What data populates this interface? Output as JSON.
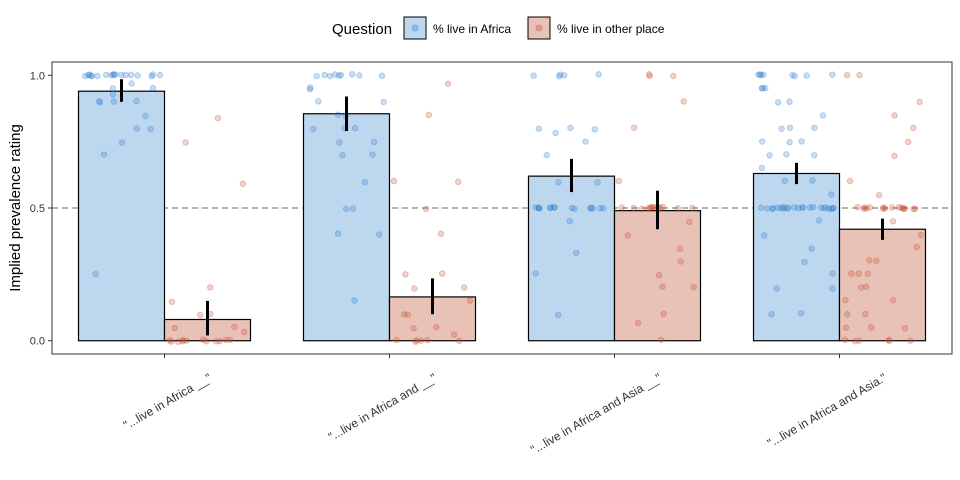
{
  "chart_data": {
    "type": "bar",
    "title": "",
    "xlabel": "",
    "ylabel": "Implied prevalence rating",
    "ylim": [
      -0.05,
      1.05
    ],
    "yticks": [
      "0.0",
      "0.5",
      "1.0"
    ],
    "reference_line": 0.5,
    "legend": {
      "title": "Question",
      "position": "top"
    },
    "categories": [
      "\"...live in Africa __\"",
      "\"...live in Africa and __\"",
      "\"...live in Africa and Asia __\"",
      "\"...live in Africa and Asia.\""
    ],
    "series": [
      {
        "name": "% live in Africa",
        "color": "#bdd7ee",
        "point_color": "#2b7bd0",
        "values": [
          0.94,
          0.855,
          0.62,
          0.63
        ],
        "ci_low": [
          0.9,
          0.79,
          0.56,
          0.59
        ],
        "ci_high": [
          0.985,
          0.92,
          0.685,
          0.67
        ],
        "points": [
          [
            1.0,
            1.0,
            1.0,
            1.0,
            1.0,
            1.0,
            1.0,
            1.0,
            1.0,
            1.0,
            1.0,
            1.0,
            1.0,
            1.0,
            1.0,
            1.0,
            1.0,
            1.0,
            0.97,
            0.95,
            0.95,
            0.93,
            0.9,
            0.9,
            0.9,
            0.9,
            0.85,
            0.8,
            0.8,
            0.75,
            0.7,
            0.25
          ],
          [
            1.0,
            1.0,
            1.0,
            1.0,
            1.0,
            1.0,
            1.0,
            1.0,
            1.0,
            0.95,
            0.95,
            0.9,
            0.9,
            0.85,
            0.85,
            0.8,
            0.8,
            0.8,
            0.75,
            0.75,
            0.7,
            0.7,
            0.6,
            0.5,
            0.5,
            0.4,
            0.4,
            0.15
          ],
          [
            1.0,
            1.0,
            1.0,
            1.0,
            1.0,
            0.8,
            0.8,
            0.8,
            0.78,
            0.75,
            0.7,
            0.6,
            0.6,
            0.5,
            0.5,
            0.5,
            0.5,
            0.5,
            0.5,
            0.5,
            0.5,
            0.5,
            0.5,
            0.5,
            0.5,
            0.5,
            0.5,
            0.5,
            0.45,
            0.33,
            0.25,
            0.1
          ],
          [
            1.0,
            1.0,
            1.0,
            1.0,
            1.0,
            1.0,
            1.0,
            1.0,
            0.95,
            0.95,
            0.95,
            0.9,
            0.9,
            0.85,
            0.8,
            0.8,
            0.8,
            0.75,
            0.75,
            0.75,
            0.7,
            0.7,
            0.7,
            0.65,
            0.6,
            0.6,
            0.55,
            0.5,
            0.5,
            0.5,
            0.5,
            0.5,
            0.5,
            0.5,
            0.5,
            0.5,
            0.5,
            0.5,
            0.5,
            0.5,
            0.5,
            0.5,
            0.5,
            0.5,
            0.5,
            0.5,
            0.5,
            0.5,
            0.5,
            0.5,
            0.45,
            0.4,
            0.35,
            0.3,
            0.25,
            0.2,
            0.2,
            0.1,
            0.1
          ]
        ]
      },
      {
        "name": "% live in other place",
        "color": "#e8c1b7",
        "point_color": "#c94a2c",
        "values": [
          0.08,
          0.165,
          0.49,
          0.42
        ],
        "ci_low": [
          0.02,
          0.1,
          0.42,
          0.38
        ],
        "ci_high": [
          0.15,
          0.235,
          0.565,
          0.46
        ],
        "points": [
          [
            0.84,
            0.75,
            0.59,
            0.2,
            0.15,
            0.1,
            0.1,
            0.05,
            0.05,
            0.03,
            0.0,
            0.0,
            0.0,
            0.0,
            0.0,
            0.0,
            0.0,
            0.0,
            0.0,
            0.0,
            0.0,
            0.0
          ],
          [
            0.97,
            0.85,
            0.6,
            0.6,
            0.5,
            0.4,
            0.25,
            0.25,
            0.2,
            0.2,
            0.15,
            0.1,
            0.1,
            0.05,
            0.05,
            0.02,
            0.0,
            0.0,
            0.0,
            0.0,
            0.0,
            0.0
          ],
          [
            1.0,
            1.0,
            1.0,
            0.9,
            0.8,
            0.6,
            0.5,
            0.5,
            0.5,
            0.5,
            0.5,
            0.5,
            0.5,
            0.5,
            0.5,
            0.5,
            0.5,
            0.5,
            0.5,
            0.5,
            0.45,
            0.4,
            0.35,
            0.3,
            0.25,
            0.2,
            0.2,
            0.1,
            0.07,
            0.0
          ],
          [
            1.0,
            1.0,
            0.9,
            0.85,
            0.8,
            0.75,
            0.7,
            0.6,
            0.55,
            0.5,
            0.5,
            0.5,
            0.5,
            0.5,
            0.5,
            0.5,
            0.5,
            0.5,
            0.5,
            0.5,
            0.5,
            0.5,
            0.5,
            0.5,
            0.5,
            0.45,
            0.4,
            0.35,
            0.3,
            0.3,
            0.25,
            0.25,
            0.25,
            0.2,
            0.2,
            0.15,
            0.15,
            0.1,
            0.1,
            0.05,
            0.05,
            0.05,
            0.0,
            0.0,
            0.0,
            0.0,
            0.0,
            0.0
          ]
        ]
      }
    ]
  }
}
